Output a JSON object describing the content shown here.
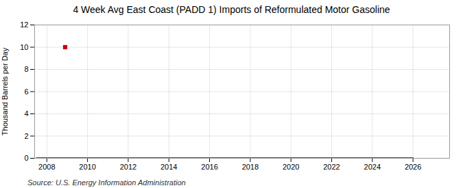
{
  "chart_data": {
    "type": "line",
    "title": "4 Week Avg East Coast (PADD 1) Imports of Reformulated Motor Gasoline",
    "ylabel": "Thousand Barrels per Day",
    "annotations": [
      "Source: U.S. Energy Information Administration"
    ],
    "series": [
      {
        "type": "line",
        "color": "#6b0000",
        "x": [
          2007.5,
          2026.0
        ],
        "values": [
          0.0,
          0.0
        ]
      },
      {
        "type": "scatter",
        "marker": "square",
        "color": "#cc0000",
        "x": [
          2008.9
        ],
        "values": [
          10.0
        ]
      }
    ],
    "xlim": [
      2007.4,
      2027.8
    ],
    "xticks": [
      2008,
      2010,
      2012,
      2014,
      2016,
      2018,
      2020,
      2022,
      2024,
      2026
    ],
    "ylim": [
      0,
      12
    ],
    "yticks": [
      0,
      2,
      4,
      6,
      8,
      10,
      12
    ],
    "grid": true
  }
}
